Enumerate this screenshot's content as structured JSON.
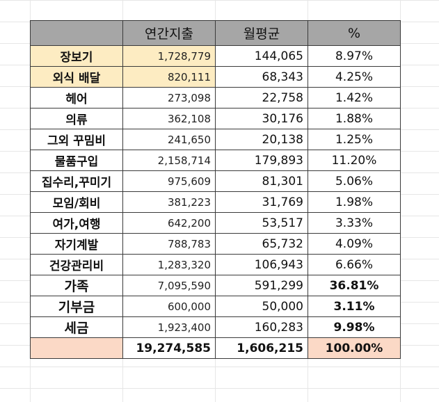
{
  "headers": [
    "",
    "연간지출",
    "월평균",
    "%"
  ],
  "rows": [
    {
      "category": "장보기",
      "annual": "1,728,779",
      "monthly": "144,065",
      "percent": "8.97%"
    },
    {
      "category": "외식 배달",
      "annual": "820,111",
      "monthly": "68,343",
      "percent": "4.25%"
    },
    {
      "category": "헤어",
      "annual": "273,098",
      "monthly": "22,758",
      "percent": "1.42%"
    },
    {
      "category": "의류",
      "annual": "362,108",
      "monthly": "30,176",
      "percent": "1.88%"
    },
    {
      "category": "그외 꾸밈비",
      "annual": "241,650",
      "monthly": "20,138",
      "percent": "1.25%"
    },
    {
      "category": "물품구입",
      "annual": "2,158,714",
      "monthly": "179,893",
      "percent": "11.20%"
    },
    {
      "category": "집수리,꾸미기",
      "annual": "975,609",
      "monthly": "81,301",
      "percent": "5.06%"
    },
    {
      "category": "모임/회비",
      "annual": "381,223",
      "monthly": "31,769",
      "percent": "1.98%"
    },
    {
      "category": "여가,여행",
      "annual": "642,200",
      "monthly": "53,517",
      "percent": "3.33%"
    },
    {
      "category": "자기계발",
      "annual": "788,783",
      "monthly": "65,732",
      "percent": "4.09%"
    },
    {
      "category": "건강관리비",
      "annual": "1,283,320",
      "monthly": "106,943",
      "percent": "6.66%"
    },
    {
      "category": "가족",
      "annual": "7,095,590",
      "monthly": "591,299",
      "percent": "36.81%"
    },
    {
      "category": "기부금",
      "annual": "600,000",
      "monthly": "50,000",
      "percent": "3.11%"
    },
    {
      "category": "세금",
      "annual": "1,923,400",
      "monthly": "160,283",
      "percent": "9.98%"
    }
  ],
  "total": {
    "category": "",
    "annual": "19,274,585",
    "monthly": "1,606,215",
    "percent": "100.00%"
  },
  "colors": {
    "header_bg": "#a6a6a6",
    "highlight_bg": "#fdecc2",
    "total_bg": "#fbd9c6",
    "border": "#3a3a3a",
    "grid": "#e6e6e6"
  }
}
